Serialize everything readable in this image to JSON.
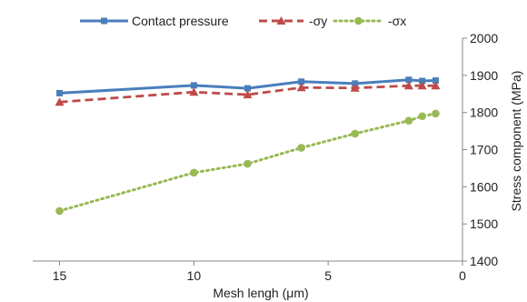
{
  "chart_data": {
    "type": "line",
    "title": "",
    "xlabel": "Mesh lengh (μm)",
    "ylabel": "Stress component (MPa)",
    "xlim": [
      16,
      0
    ],
    "xaxis_reversed": true,
    "ylim": [
      1400,
      2000
    ],
    "y_axis_position": "right",
    "x_ticks": [
      15,
      10,
      5,
      0
    ],
    "y_ticks": [
      1400,
      1500,
      1600,
      1700,
      1800,
      1900,
      2000
    ],
    "grid": false,
    "legend_position": "top",
    "x": [
      15,
      10,
      8,
      6,
      4,
      2,
      1.5,
      1
    ],
    "series": [
      {
        "name": "Contact pressure",
        "color": "#4a7ebb",
        "line_style": "solid",
        "marker": "square",
        "values": [
          1852,
          1873,
          1865,
          1883,
          1878,
          1888,
          1885,
          1886
        ]
      },
      {
        "name": "-σy",
        "color": "#be4b48",
        "line_style": "dashed",
        "marker": "triangle",
        "values": [
          1828,
          1855,
          1848,
          1867,
          1866,
          1872,
          1872,
          1872
        ]
      },
      {
        "name": "-σx",
        "color": "#98b954",
        "line_style": "dotted",
        "marker": "circle",
        "values": [
          1535,
          1638,
          1662,
          1705,
          1743,
          1778,
          1790,
          1797
        ]
      }
    ]
  }
}
